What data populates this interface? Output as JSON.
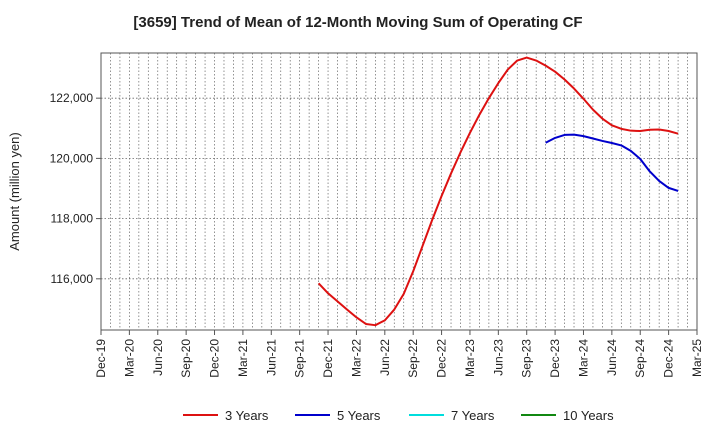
{
  "chart_data": {
    "type": "line",
    "title": "[3659]  Trend of Mean of 12-Month Moving Sum of Operating CF",
    "xlabel": "",
    "ylabel": "Amount (million yen)",
    "ylim": [
      114300,
      123500
    ],
    "yticks": [
      116000,
      118000,
      120000,
      122000
    ],
    "ytick_labels": [
      "116,000",
      "118,000",
      "120,000",
      "122,000"
    ],
    "x_range": [
      "Dec-19",
      "Mar-25"
    ],
    "x_ticks": [
      "Dec-19",
      "Mar-20",
      "Jun-20",
      "Sep-20",
      "Dec-20",
      "Mar-21",
      "Jun-21",
      "Sep-21",
      "Dec-21",
      "Mar-22",
      "Jun-22",
      "Sep-22",
      "Dec-22",
      "Mar-23",
      "Jun-23",
      "Sep-23",
      "Dec-23",
      "Mar-24",
      "Jun-24",
      "Sep-24",
      "Dec-24",
      "Mar-25"
    ],
    "grid": true,
    "legend_position": "bottom",
    "series": [
      {
        "name": "3 Years",
        "color": "#dd1111",
        "start": "Nov-21",
        "values": [
          115850,
          115520,
          115250,
          114980,
          114720,
          114500,
          114460,
          114620,
          114980,
          115500,
          116250,
          117100,
          117950,
          118750,
          119500,
          120200,
          120850,
          121450,
          122000,
          122500,
          122950,
          123250,
          123350,
          123250,
          123080,
          122880,
          122620,
          122320,
          121980,
          121620,
          121320,
          121100,
          120980,
          120920,
          120910,
          120950,
          120960,
          120910,
          120820
        ]
      },
      {
        "name": "5 Years",
        "color": "#0000cc",
        "start": "Nov-23",
        "values": [
          120520,
          120680,
          120780,
          120790,
          120740,
          120660,
          120580,
          120510,
          120430,
          120250,
          119980,
          119570,
          119250,
          119020,
          118920
        ]
      },
      {
        "name": "7 Years",
        "color": "#00dddd",
        "start": "",
        "values": []
      },
      {
        "name": "10 Years",
        "color": "#118811",
        "start": "",
        "values": []
      }
    ]
  }
}
